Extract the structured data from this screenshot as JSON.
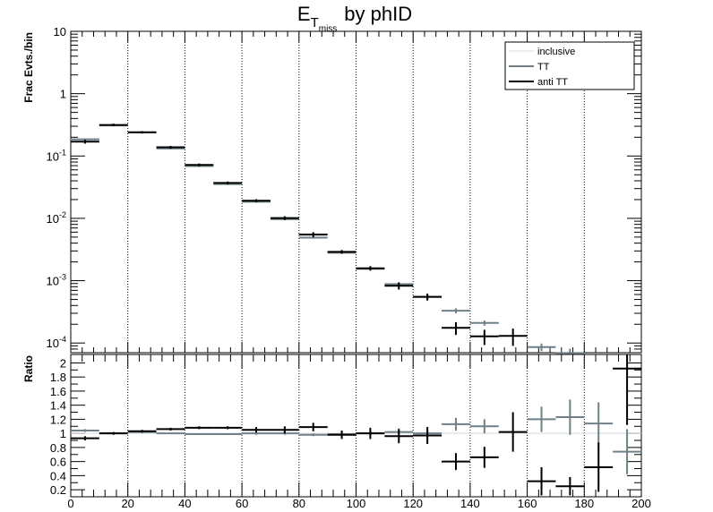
{
  "chart_data": [
    {
      "type": "line",
      "panel": "top",
      "title_main": "E",
      "title_sub1": "T",
      "title_sub2": "miss",
      "title_rest": "by phID",
      "ylabel": "Frac Evts./bin",
      "yscale": "log",
      "ylim": [
        7e-05,
        10
      ],
      "xlim": [
        0,
        200
      ],
      "x_tick_labels": [
        "0",
        "20",
        "40",
        "60",
        "80",
        "100",
        "120",
        "140",
        "160",
        "180",
        "200"
      ],
      "y_tick_labels": [
        {
          "base": "10",
          "exp": "-4"
        },
        {
          "base": "10",
          "exp": "-3"
        },
        {
          "base": "10",
          "exp": "-2"
        },
        {
          "base": "10",
          "exp": "-1"
        },
        {
          "base": "1",
          "exp": ""
        },
        {
          "base": "10",
          "exp": ""
        }
      ],
      "legend": [
        "inclusive",
        "TT",
        "anti TT"
      ],
      "legend_position": "top-right",
      "grid_x": true,
      "bin_width": 10,
      "series": [
        {
          "name": "inclusive",
          "color": "#d9dee3",
          "x": [
            5,
            15,
            25,
            35,
            45,
            55,
            65,
            75,
            85,
            95,
            105,
            115,
            125
          ],
          "y": [
            0.18,
            0.31,
            0.235,
            0.133,
            0.069,
            0.036,
            0.0186,
            0.0097,
            0.0052,
            0.0029,
            0.00155,
            0.00086,
            0.00055
          ]
        },
        {
          "name": "TT",
          "color": "#6f8087",
          "x": [
            5,
            15,
            25,
            35,
            45,
            55,
            65,
            75,
            85,
            95,
            105,
            115,
            125,
            135,
            145,
            165,
            175
          ],
          "y": [
            0.185,
            0.31,
            0.238,
            0.132,
            0.069,
            0.0355,
            0.0185,
            0.0097,
            0.0049,
            0.0028,
            0.00155,
            0.00088,
            0.00055,
            0.00033,
            0.00021,
            8.6e-05,
            6.9e-05
          ],
          "err": [
            0.005,
            0.006,
            0.005,
            0.004,
            0.002,
            0.001,
            0.0006,
            0.0003,
            0.0002,
            0.0001,
            7e-05,
            5e-05,
            4e-05,
            3e-05,
            2e-05,
            1.2e-05,
            1.2e-05
          ]
        },
        {
          "name": "anti TT",
          "color": "#000000",
          "x": [
            5,
            15,
            25,
            35,
            45,
            55,
            65,
            75,
            85,
            95,
            105,
            115,
            125,
            135,
            145,
            155
          ],
          "y": [
            0.17,
            0.315,
            0.24,
            0.138,
            0.072,
            0.037,
            0.0192,
            0.0101,
            0.0055,
            0.0029,
            0.00158,
            0.00083,
            0.00055,
            0.000175,
            0.000128,
            0.00013
          ],
          "err": [
            0.012,
            0.015,
            0.011,
            0.007,
            0.004,
            0.002,
            0.0011,
            0.0007,
            0.0005,
            0.0002,
            0.00013,
            0.00011,
            7e-05,
            4e-05,
            3.5e-05,
            4e-05
          ]
        }
      ]
    },
    {
      "type": "line",
      "panel": "bottom",
      "ylabel": "Ratio",
      "ylim": [
        0.1,
        2.12
      ],
      "xlim": [
        0,
        200
      ],
      "y_tick_labels": [
        "0.2",
        "0.4",
        "0.6",
        "0.8",
        "1",
        "1.2",
        "1.4",
        "1.6",
        "1.8",
        "2"
      ],
      "reference_line": 1,
      "series": [
        {
          "name": "inclusive",
          "color": "#d9dee3",
          "x": [
            5,
            15,
            25,
            35,
            45,
            55,
            65,
            75,
            85,
            95,
            105,
            115,
            125,
            135,
            145,
            155,
            165,
            175,
            185,
            195
          ],
          "y": [
            1,
            1,
            1,
            1,
            1,
            1,
            1,
            1,
            1,
            1,
            1,
            1,
            1,
            1,
            1,
            1,
            1,
            1,
            1,
            1
          ]
        },
        {
          "name": "TT",
          "color": "#6f8087",
          "x": [
            5,
            15,
            25,
            35,
            45,
            55,
            65,
            75,
            85,
            95,
            105,
            115,
            125,
            135,
            145,
            165,
            175,
            185,
            195
          ],
          "y": [
            1.04,
            1.0,
            1.02,
            1.0,
            0.99,
            0.99,
            1.0,
            1.0,
            0.98,
            0.99,
            1.0,
            1.02,
            1.0,
            1.13,
            1.1,
            1.2,
            1.23,
            1.14,
            0.74
          ],
          "err": [
            0.02,
            0.01,
            0.01,
            0.01,
            0.01,
            0.01,
            0.02,
            0.02,
            0.02,
            0.03,
            0.04,
            0.05,
            0.06,
            0.09,
            0.1,
            0.18,
            0.25,
            0.3,
            0.32
          ]
        },
        {
          "name": "anti TT",
          "color": "#000000",
          "x": [
            5,
            15,
            25,
            35,
            45,
            55,
            65,
            75,
            85,
            95,
            105,
            115,
            125,
            135,
            145,
            155,
            165,
            175,
            185,
            195
          ],
          "y": [
            0.93,
            1.0,
            1.03,
            1.06,
            1.08,
            1.08,
            1.05,
            1.05,
            1.09,
            0.98,
            1.0,
            0.96,
            0.97,
            0.6,
            0.66,
            1.02,
            0.32,
            0.25,
            0.52,
            1.92
          ],
          "err": [
            0.03,
            0.02,
            0.02,
            0.02,
            0.02,
            0.02,
            0.04,
            0.05,
            0.06,
            0.06,
            0.08,
            0.1,
            0.12,
            0.12,
            0.15,
            0.28,
            0.2,
            0.13,
            0.35,
            0.8
          ]
        }
      ]
    }
  ]
}
